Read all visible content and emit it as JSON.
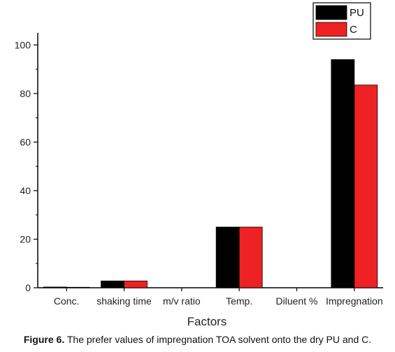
{
  "chart_data": {
    "type": "bar",
    "xlabel": "Factors",
    "ylabel": "",
    "ylim": [
      0,
      105
    ],
    "yticks": [
      0,
      20,
      40,
      60,
      80,
      100
    ],
    "categories": [
      "Conc.",
      "shaking time",
      "m/v ratio",
      "Temp.",
      "Diluent %",
      "Impregnation"
    ],
    "series": [
      {
        "name": "PU",
        "color": "#000000",
        "values": [
          0.3,
          2.8,
          0,
          25,
          0,
          94
        ]
      },
      {
        "name": "C",
        "color": "#ee2222",
        "values": [
          0.2,
          2.8,
          0,
          25,
          0,
          83.5
        ]
      }
    ],
    "grid": false,
    "legend_position": "top-right"
  },
  "caption": {
    "label": "Figure 6.",
    "text": "The prefer values of impregnation TOA solvent onto the dry PU and C."
  }
}
